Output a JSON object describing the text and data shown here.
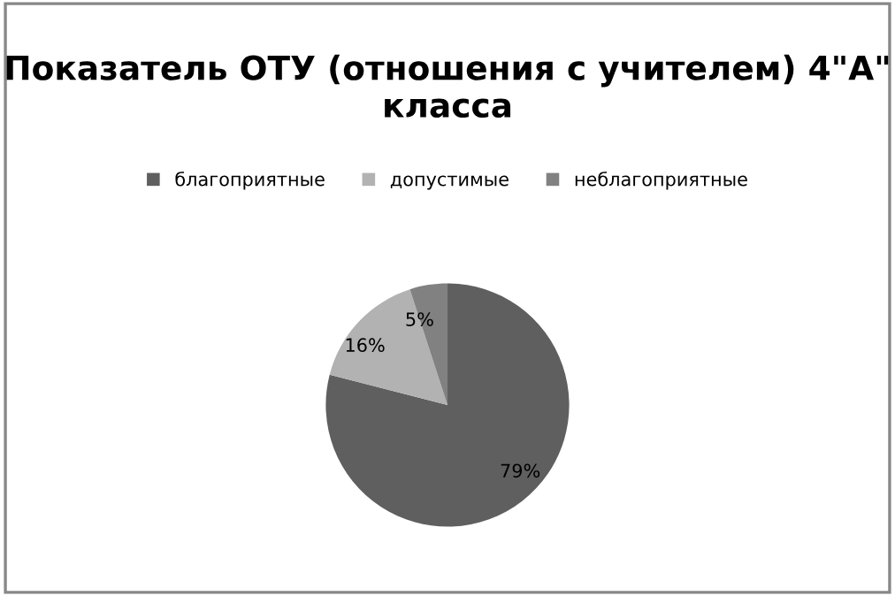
{
  "chart_data": {
    "type": "pie",
    "title": "Показатель ОТУ (отношения с учителем) 4\"А\" класса",
    "categories": [
      "благоприятные",
      "допустимые",
      "неблагоприятные"
    ],
    "values": [
      79,
      16,
      5
    ],
    "colors": [
      "#5f5f5f",
      "#b2b2b2",
      "#818181"
    ],
    "value_labels": [
      "79%",
      "16%",
      "5%"
    ],
    "legend": "top"
  }
}
